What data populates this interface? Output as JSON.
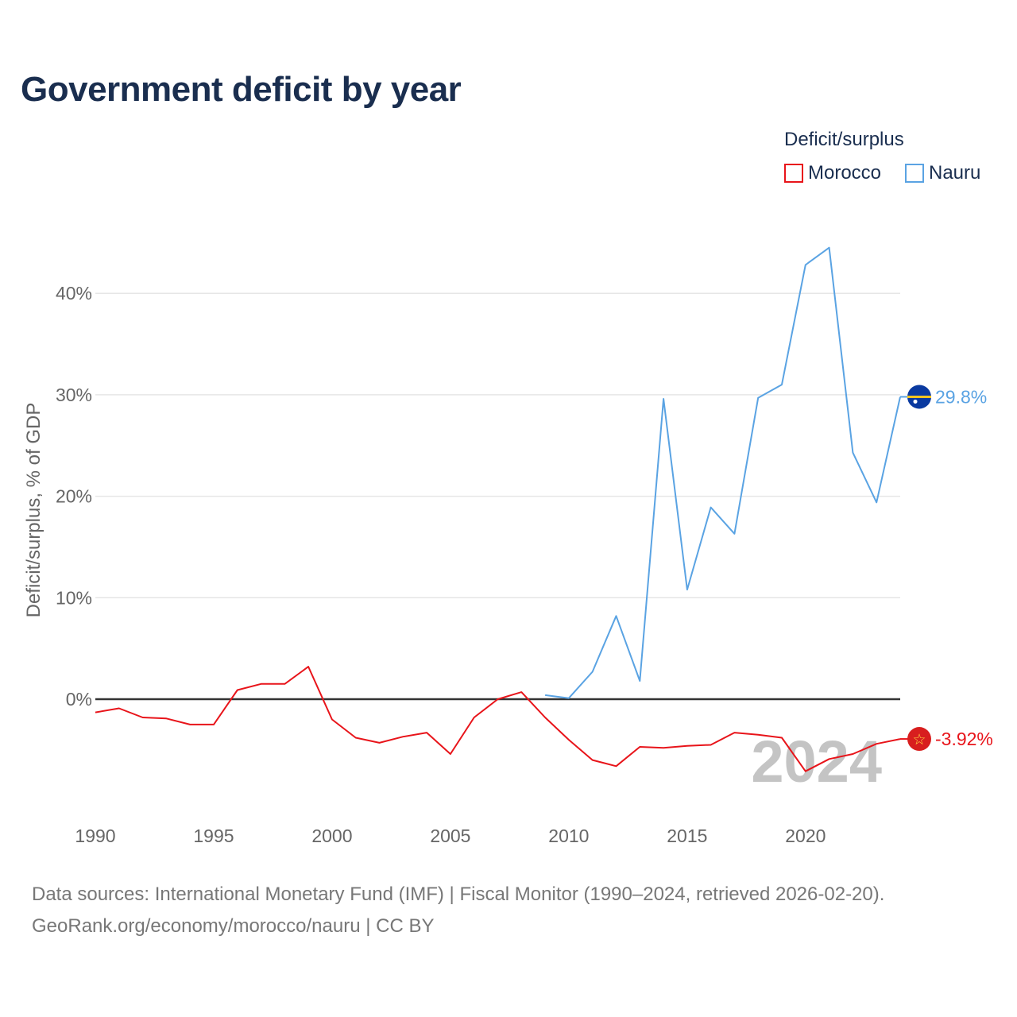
{
  "title": "Government deficit by year",
  "legend": {
    "title": "Deficit/surplus",
    "items": [
      {
        "label": "Morocco",
        "color": "#e8141a"
      },
      {
        "label": "Nauru",
        "color": "#5aa3e3"
      }
    ]
  },
  "year_watermark": "2024",
  "source": {
    "line1": "Data sources: International Monetary Fund (IMF) | Fiscal Monitor (1990–2024, retrieved 2026-02-20).",
    "line2": "GeoRank.org/economy/morocco/nauru | CC BY"
  },
  "chart_data": {
    "type": "line",
    "title": "Government deficit by year",
    "xlabel": "",
    "ylabel": "Deficit/surplus, % of GDP",
    "xlim": [
      1990,
      2024
    ],
    "ylim": [
      -10,
      45
    ],
    "x_ticks": [
      1990,
      1995,
      2000,
      2005,
      2010,
      2015,
      2020
    ],
    "y_ticks": [
      {
        "value": 0,
        "label": "0%"
      },
      {
        "value": 10,
        "label": "10%"
      },
      {
        "value": 20,
        "label": "20%"
      },
      {
        "value": 30,
        "label": "30%"
      },
      {
        "value": 40,
        "label": "40%"
      }
    ],
    "series": [
      {
        "name": "Morocco",
        "color": "#e8141a",
        "end_label": "-3.92%",
        "x": [
          1990,
          1991,
          1992,
          1993,
          1994,
          1995,
          1996,
          1997,
          1998,
          1999,
          2000,
          2001,
          2002,
          2003,
          2004,
          2005,
          2006,
          2007,
          2008,
          2009,
          2010,
          2011,
          2012,
          2013,
          2014,
          2015,
          2016,
          2017,
          2018,
          2019,
          2020,
          2021,
          2022,
          2023,
          2024
        ],
        "values": [
          -1.3,
          -0.9,
          -1.8,
          -1.9,
          -2.5,
          -2.5,
          0.9,
          1.5,
          1.5,
          3.2,
          -2.0,
          -3.8,
          -4.3,
          -3.7,
          -3.3,
          -5.4,
          -1.8,
          0.0,
          0.7,
          -1.8,
          -4.0,
          -6.0,
          -6.6,
          -4.7,
          -4.8,
          -4.6,
          -4.5,
          -3.3,
          -3.5,
          -3.8,
          -7.1,
          -5.9,
          -5.4,
          -4.4,
          -3.92
        ]
      },
      {
        "name": "Nauru",
        "color": "#5aa3e3",
        "end_label": "29.8%",
        "x": [
          2009,
          2010,
          2011,
          2012,
          2013,
          2014,
          2015,
          2016,
          2017,
          2018,
          2019,
          2020,
          2021,
          2022,
          2023,
          2024
        ],
        "values": [
          0.4,
          0.1,
          2.7,
          8.2,
          1.8,
          29.6,
          10.8,
          18.9,
          16.3,
          29.7,
          31.0,
          42.8,
          44.5,
          24.3,
          19.4,
          29.8
        ]
      }
    ]
  }
}
